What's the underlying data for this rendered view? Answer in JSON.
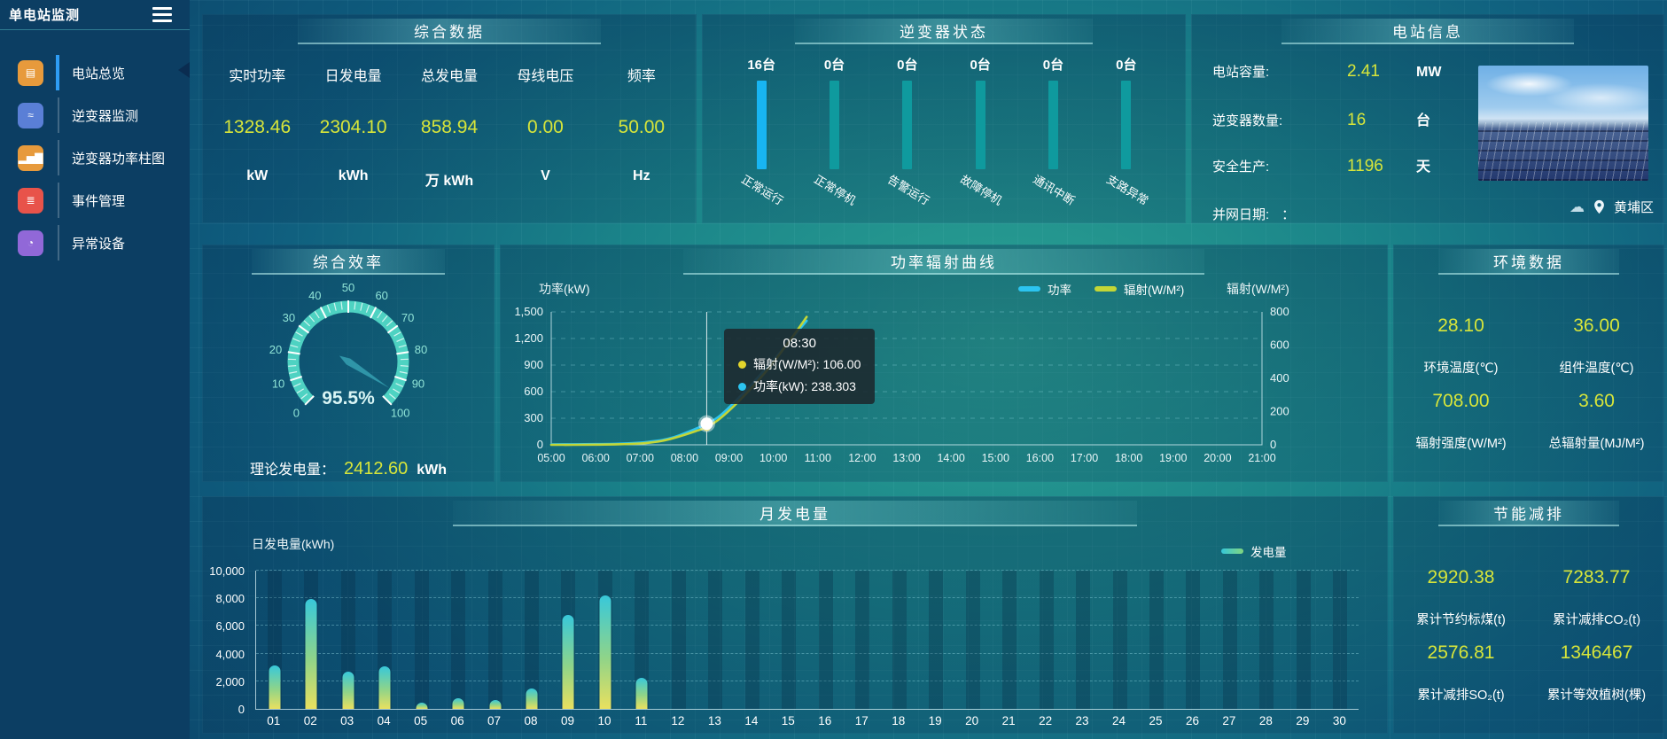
{
  "sidebar": {
    "title": "单电站监测",
    "menu": [
      {
        "label": "电站总览",
        "icon": "station-overview-icon",
        "glyph": "▤",
        "color": "#e79a3c",
        "active": true
      },
      {
        "label": "逆变器监测",
        "icon": "inverter-monitor-icon",
        "glyph": "≈",
        "color": "#5a7fd6",
        "active": false
      },
      {
        "label": "逆变器功率柱图",
        "icon": "inverter-power-bars-icon",
        "glyph": "▂▅▇",
        "color": "#e79a3c",
        "active": false
      },
      {
        "label": "事件管理",
        "icon": "event-management-icon",
        "glyph": "≣",
        "color": "#e8534a",
        "active": false
      },
      {
        "label": "异常设备",
        "icon": "abnormal-device-icon",
        "glyph": "◔",
        "color": "#9168d8",
        "active": false
      }
    ]
  },
  "overview": {
    "title": "综合数据",
    "metrics": [
      {
        "label": "实时功率",
        "value": "1328.46",
        "unit": "kW"
      },
      {
        "label": "日发电量",
        "value": "2304.10",
        "unit": "kWh"
      },
      {
        "label": "总发电量",
        "value": "858.94",
        "unit": "万 kWh"
      },
      {
        "label": "母线电压",
        "value": "0.00",
        "unit": "V"
      },
      {
        "label": "频率",
        "value": "50.00",
        "unit": "Hz"
      }
    ]
  },
  "inverter_status": {
    "title": "逆变器状态",
    "chart_data": {
      "type": "bar",
      "categories": [
        "正常运行",
        "正常停机",
        "告警运行",
        "故障停机",
        "通讯中断",
        "支路异常"
      ],
      "values": [
        16,
        0,
        0,
        0,
        0,
        0
      ],
      "unit": "台",
      "highlight_index": 0,
      "highlight_color": "#18b5f2",
      "bar_color": "#0f9a9e"
    }
  },
  "station_info": {
    "title": "电站信息",
    "rows": [
      {
        "label": "电站容量:",
        "value": "2.41",
        "unit": "MW"
      },
      {
        "label": "逆变器数量:",
        "value": "16",
        "unit": "台"
      },
      {
        "label": "安全生产:",
        "value": "1196",
        "unit": "天"
      }
    ],
    "grid_date_label": "并网日期:",
    "grid_date_value": "：",
    "location": "黄埔区",
    "cloud_icon": "☁"
  },
  "efficiency": {
    "title": "综合效率",
    "chart_data": {
      "type": "gauge",
      "min": 0,
      "max": 100,
      "value": 95.5,
      "display": "95.5%",
      "major_tick": 10,
      "minor_tick": 2.5
    },
    "theory_label": "理论发电量：",
    "theory_value": "2412.60",
    "theory_unit": "kWh"
  },
  "power_curve": {
    "title": "功率辐射曲线",
    "chart_data": {
      "type": "line",
      "x_range": [
        5,
        21
      ],
      "x_hours": [
        5,
        5.5,
        6,
        6.5,
        7,
        7.25,
        7.5,
        7.75,
        8,
        8.25,
        8.5,
        8.75,
        9,
        9.25,
        9.5,
        9.75,
        10,
        10.25,
        10.5,
        10.75
      ],
      "series": [
        {
          "name": "功率",
          "color": "#2cc4f0",
          "axis": "left",
          "values": [
            5,
            6,
            8,
            12,
            25,
            38,
            55,
            85,
            130,
            180,
            238.3,
            310,
            420,
            545,
            675,
            815,
            955,
            1100,
            1250,
            1400
          ]
        },
        {
          "name": "辐射(W/M²)",
          "color": "#c4d636",
          "axis": "right",
          "values": [
            0,
            0,
            1,
            3,
            8,
            14,
            24,
            40,
            60,
            82,
            106,
            148,
            205,
            270,
            340,
            415,
            495,
            585,
            675,
            770
          ]
        }
      ],
      "left_axis": {
        "title": "功率(kW)",
        "max": 1500,
        "tick_labels": [
          "0",
          "300",
          "600",
          "900",
          "1,200",
          "1,500"
        ]
      },
      "right_axis": {
        "title": "辐射(W/M²)",
        "max": 800,
        "tick_labels": [
          "0",
          "200",
          "400",
          "600",
          "800"
        ]
      },
      "x_ticks": [
        "05:00",
        "06:00",
        "07:00",
        "08:00",
        "09:00",
        "10:00",
        "11:00",
        "12:00",
        "13:00",
        "14:00",
        "15:00",
        "16:00",
        "17:00",
        "18:00",
        "19:00",
        "20:00",
        "21:00"
      ],
      "tooltip": {
        "x_hour": 8.5,
        "title": "08:30",
        "rows": [
          {
            "dot_color": "#e3d52c",
            "text": "辐射(W/M²): 106.00"
          },
          {
            "dot_color": "#2cc4f0",
            "text": "功率(kW): 238.303"
          }
        ]
      }
    }
  },
  "environment": {
    "title": "环境数据",
    "stats": [
      {
        "value": "28.10",
        "label": "环境温度(℃)"
      },
      {
        "value": "36.00",
        "label": "组件温度(℃)"
      },
      {
        "value": "708.00",
        "label": "辐射强度(W/M²)"
      },
      {
        "value": "3.60",
        "label": "总辐射量(MJ/M²)"
      }
    ]
  },
  "month_generation": {
    "title": "月发电量",
    "legend": "发电量",
    "chart_data": {
      "type": "bar",
      "axis_title": "日发电量(kWh)",
      "categories": [
        "01",
        "02",
        "03",
        "04",
        "05",
        "06",
        "07",
        "08",
        "09",
        "10",
        "11",
        "12",
        "13",
        "14",
        "15",
        "16",
        "17",
        "18",
        "19",
        "20",
        "21",
        "22",
        "23",
        "24",
        "25",
        "26",
        "27",
        "28",
        "29",
        "30"
      ],
      "values": [
        3150,
        7950,
        2700,
        3050,
        480,
        780,
        620,
        1480,
        6800,
        8200,
        2250,
        0,
        0,
        0,
        0,
        0,
        0,
        0,
        0,
        0,
        0,
        0,
        0,
        0,
        0,
        0,
        0,
        0,
        0,
        0
      ],
      "ylim": [
        0,
        10000
      ],
      "y_tick_labels": [
        "0",
        "2,000",
        "4,000",
        "6,000",
        "8,000",
        "10,000"
      ]
    }
  },
  "saving": {
    "title": "节能减排",
    "stats": [
      {
        "value": "2920.38",
        "label": "累计节约标煤(t)"
      },
      {
        "value": "7283.77",
        "label": "累计减排CO₂(t)"
      },
      {
        "value": "2576.81",
        "label": "累计减排SO₂(t)"
      },
      {
        "value": "1346467",
        "label": "累计等效植树(棵)"
      }
    ]
  }
}
